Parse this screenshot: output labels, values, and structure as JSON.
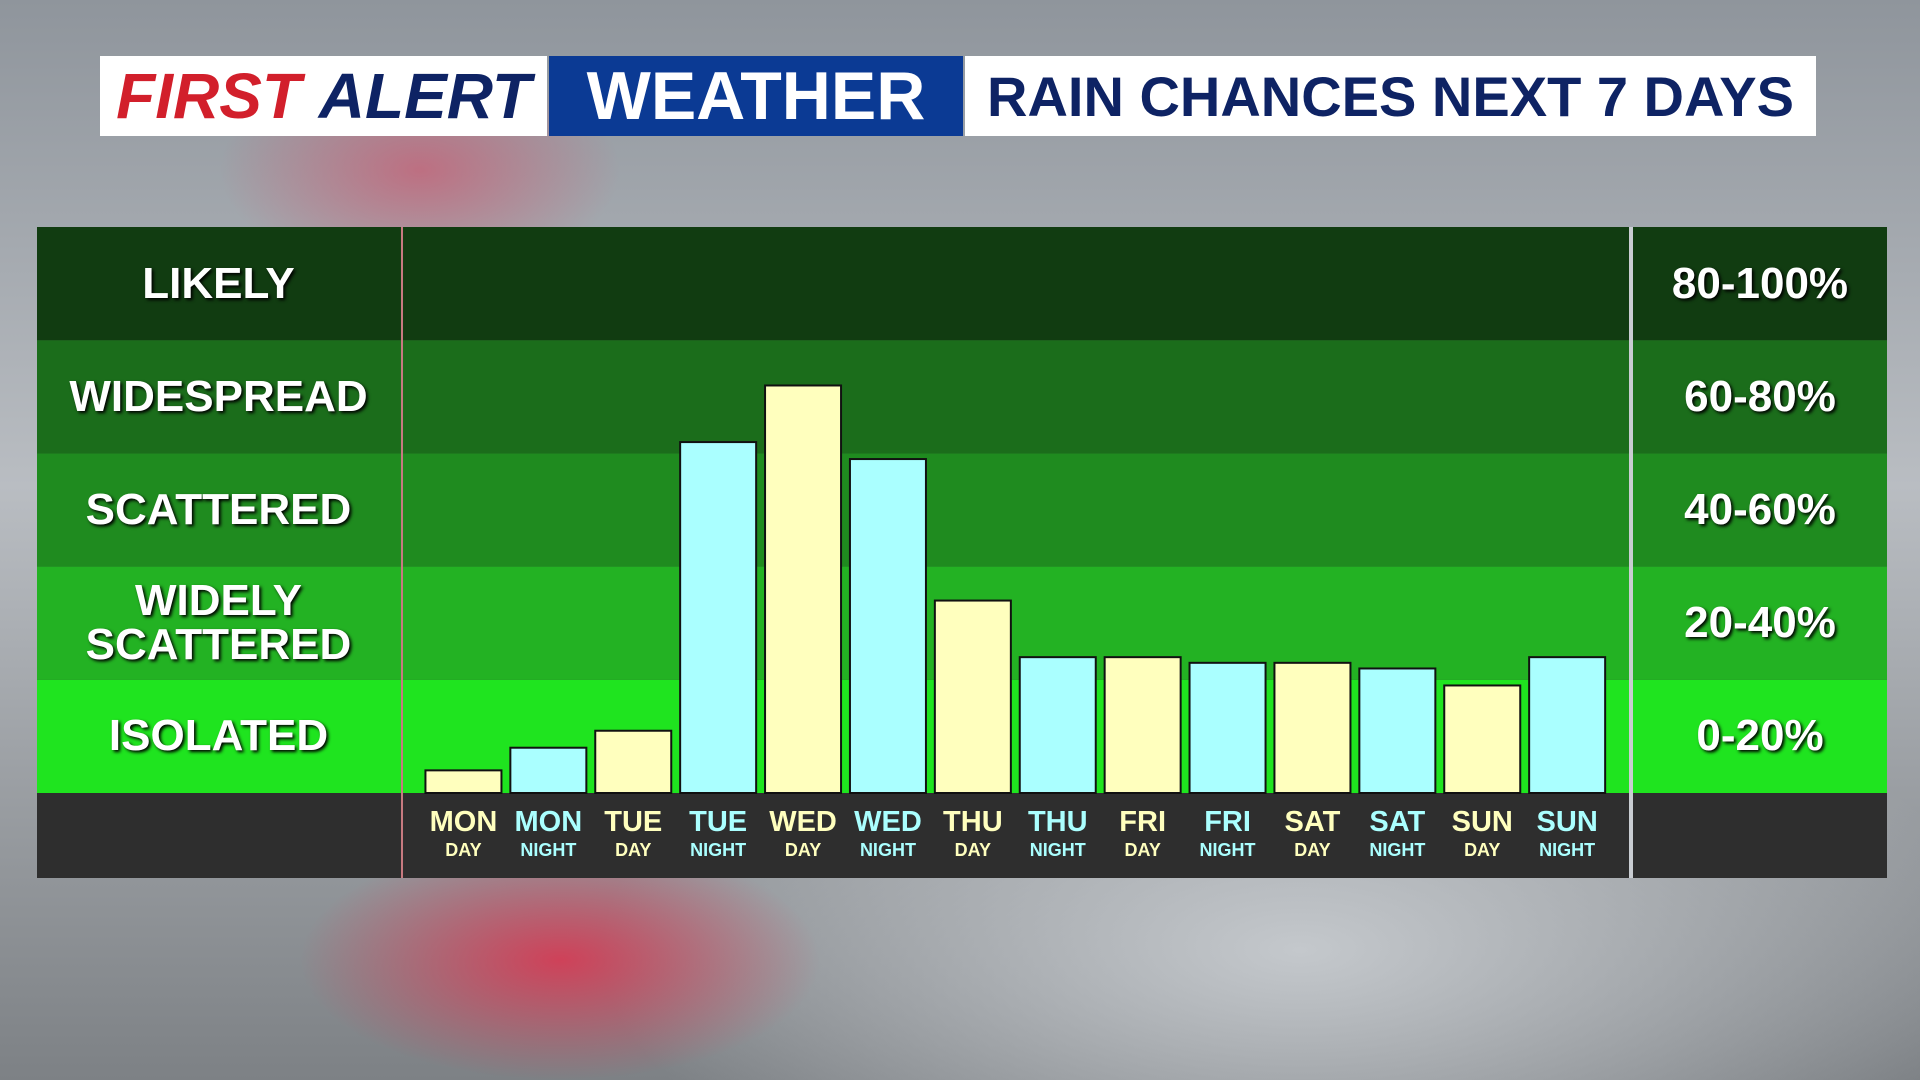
{
  "header": {
    "first": "FIRST",
    "alert": "ALERT",
    "weather": "WEATHER"
  },
  "chart_data": {
    "type": "bar",
    "title": "RAIN CHANCES NEXT 7 DAYS",
    "categories": [
      {
        "day": "MON",
        "period": "DAY"
      },
      {
        "day": "MON",
        "period": "NIGHT"
      },
      {
        "day": "TUE",
        "period": "DAY"
      },
      {
        "day": "TUE",
        "period": "NIGHT"
      },
      {
        "day": "WED",
        "period": "DAY"
      },
      {
        "day": "WED",
        "period": "NIGHT"
      },
      {
        "day": "THU",
        "period": "DAY"
      },
      {
        "day": "THU",
        "period": "NIGHT"
      },
      {
        "day": "FRI",
        "period": "DAY"
      },
      {
        "day": "FRI",
        "period": "NIGHT"
      },
      {
        "day": "SAT",
        "period": "DAY"
      },
      {
        "day": "SAT",
        "period": "NIGHT"
      },
      {
        "day": "SUN",
        "period": "DAY"
      },
      {
        "day": "SUN",
        "period": "NIGHT"
      }
    ],
    "values": [
      4,
      8,
      11,
      62,
      72,
      59,
      34,
      24,
      24,
      23,
      23,
      22,
      19,
      24
    ],
    "colors": [
      "#ffffbe",
      "#aaffff",
      "#ffffbe",
      "#aaffff",
      "#ffffbe",
      "#aaffff",
      "#ffffbe",
      "#aaffff",
      "#ffffbe",
      "#aaffff",
      "#ffffbe",
      "#aaffff",
      "#ffffbe",
      "#aaffff"
    ],
    "ylim": [
      0,
      100
    ],
    "bands": [
      {
        "label": "LIKELY",
        "range": "80-100%",
        "from": 80,
        "to": 100,
        "color": "#113c11"
      },
      {
        "label": "WIDESPREAD",
        "range": "60-80%",
        "from": 60,
        "to": 80,
        "color": "#1b6d1b"
      },
      {
        "label": "SCATTERED",
        "range": "40-60%",
        "from": 40,
        "to": 60,
        "color": "#1f8b1f"
      },
      {
        "label": "WIDELY SCATTERED",
        "range": "20-40%",
        "from": 20,
        "to": 40,
        "color": "#23b223"
      },
      {
        "label": "ISOLATED",
        "range": "0-20%",
        "from": 0,
        "to": 20,
        "color": "#1fe41f"
      }
    ]
  }
}
